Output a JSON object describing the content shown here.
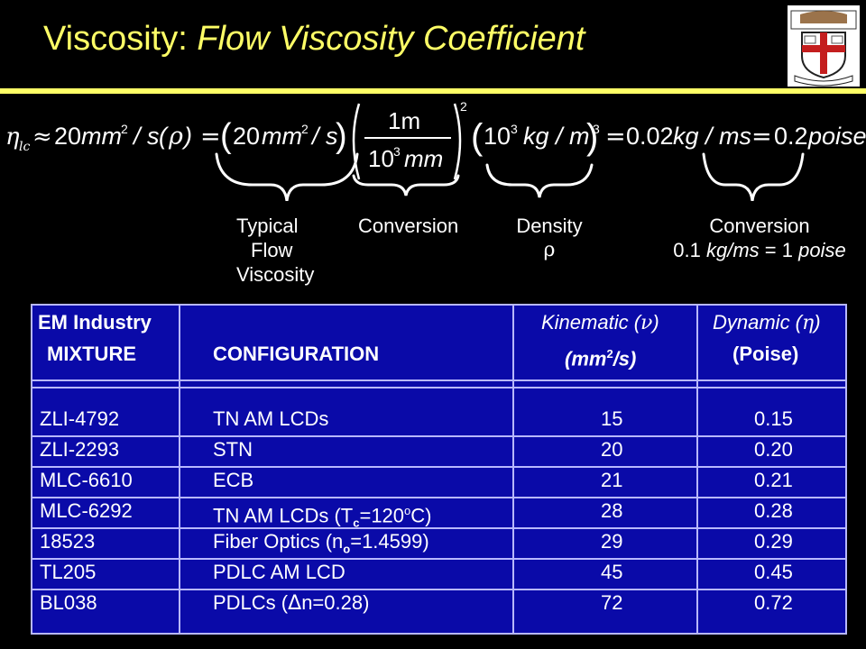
{
  "slide": {
    "title_prefix": "Viscosity: ",
    "title_italic": "Flow Viscosity Coefficient"
  },
  "equation": {
    "eta": "η",
    "eta_sub": "lc",
    "approx": "≈",
    "lhs_value": "20",
    "mm": "mm",
    "sup2": "2",
    "per_s": "/ s",
    "rho_open": "(",
    "rho": "ρ",
    "rho_close": ")",
    "equals": "=",
    "term1": "20",
    "frac_num": "1m",
    "frac_den": "10",
    "frac_den_sup": "3",
    "frac_den_unit": "mm",
    "outer_sup": "2",
    "dens_base": "10",
    "dens_sup": "3",
    "dens_unit": "kg / m",
    "dens_unit_sup": "3",
    "result1": "0.02",
    "result1_unit": "kg / ms",
    "result2": "0.2",
    "result2_unit": "poise"
  },
  "labels": {
    "typical": [
      "Typical",
      "Flow",
      "Viscosity"
    ],
    "conversion1": "Conversion",
    "density": "Density",
    "density_symbol": "ρ",
    "conversion2": "Conversion",
    "conv2_line2_prefix": "0.1 ",
    "conv2_line2_unit": "kg/ms",
    "conv2_line2_mid": " = 1 ",
    "conv2_line2_poise": "poise"
  },
  "table": {
    "header1": {
      "em_industry": "EM Industry",
      "kinematic": "Kinematic (",
      "kinematic_sym": "ν",
      "kinematic_close": ")",
      "dynamic": "Dynamic (",
      "dynamic_sym": "η",
      "dynamic_close": ")"
    },
    "header2": {
      "mixture": "MIXTURE",
      "configuration": "CONFIGURATION",
      "kin_unit_pre": "(mm",
      "kin_unit_sup": "2",
      "kin_unit_post": "/s)",
      "dyn_unit": "(Poise)"
    },
    "rows": [
      {
        "mixture": "ZLI-4792",
        "config": "TN AM LCDs",
        "kin": "15",
        "dyn": "0.15"
      },
      {
        "mixture": "ZLI-2293",
        "config": "STN",
        "kin": "20",
        "dyn": "0.20"
      },
      {
        "mixture": "MLC-6610",
        "config": "ECB",
        "kin": "21",
        "dyn": "0.21"
      },
      {
        "mixture": "MLC-6292",
        "config": "TN AM LCDs (T",
        "config_sub": "c",
        "config_post": "=120",
        "config_sup": "o",
        "config_end": "C)",
        "kin": "28",
        "dyn": "0.28"
      },
      {
        "mixture": "18523",
        "config": "Fiber Optics (n",
        "config_sub": "o",
        "config_post": "=1.4599)",
        "kin": "29",
        "dyn": "0.29"
      },
      {
        "mixture": "TL205",
        "config": "PDLC AM LCD",
        "kin": "45",
        "dyn": "0.45"
      },
      {
        "mixture": "BL038",
        "config": "PDLCs (",
        "config_sym": "Δ",
        "config_post": "n=0.28)",
        "kin": "72",
        "dyn": "0.72"
      }
    ]
  },
  "colors": {
    "background": "#000000",
    "title": "#ffff66",
    "table_bg": "#0a0aa8",
    "table_lines": "#b8b8ff"
  },
  "logo": {
    "icon": "university-shield-icon"
  }
}
